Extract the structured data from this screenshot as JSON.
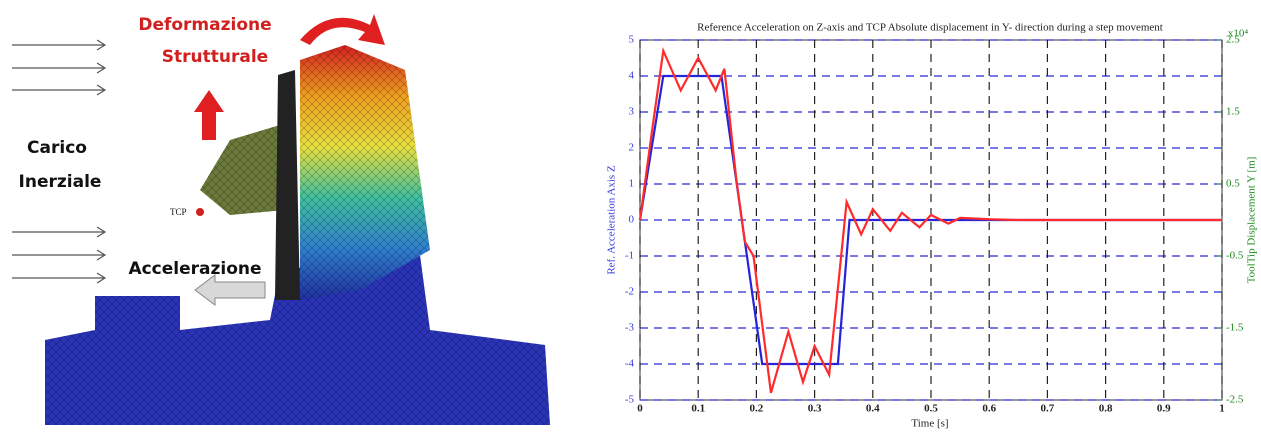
{
  "diagram": {
    "labels": {
      "deformation": [
        "Deformazione",
        "Strutturale"
      ],
      "load": [
        "Carico",
        "Inerziale"
      ],
      "acceleration": "Accelerazione",
      "tcp": "TCP"
    }
  },
  "chart_data": {
    "type": "line",
    "title": "Reference Acceleration on Z-axis and TCP Absolute displacement in Y- direction during a step movement",
    "x_label": "Time [s]",
    "y_label": "Ref. Acceleration Axis Z",
    "y2_label": "ToolTip Displacement Y [m]",
    "y2_multiplier": "x10⁴",
    "xlim": [
      0,
      1
    ],
    "xticks": [
      0,
      0.1,
      0.2,
      0.3,
      0.4,
      0.5,
      0.6,
      0.7,
      0.8,
      0.9,
      1
    ],
    "ylim": [
      -5,
      5
    ],
    "yticks": [
      -5,
      -4,
      -3,
      -2,
      -1,
      0,
      1,
      2,
      3,
      4,
      5
    ],
    "y2lim": [
      -2.5,
      2.5
    ],
    "y2ticks": [
      2.5,
      1.5,
      0.5,
      -0.5,
      -1.5,
      -2.5
    ],
    "grid": true,
    "grid_color": "#2b2bd6",
    "y_color": "#3b3be0",
    "y2_color": "#1e8a1e",
    "series": [
      {
        "color": "#2424d8",
        "x": [
          0,
          0.04,
          0.14,
          0.21,
          0.34,
          0.36,
          1
        ],
        "values": [
          0,
          4,
          4,
          -4,
          -4,
          0,
          0
        ]
      },
      {
        "color": "#ff2b2b",
        "axis": "y2",
        "x": [
          0,
          0.02,
          0.04,
          0.07,
          0.1,
          0.13,
          0.145,
          0.165,
          0.18,
          0.195,
          0.225,
          0.255,
          0.28,
          0.3,
          0.325,
          0.355,
          0.38,
          0.4,
          0.43,
          0.45,
          0.48,
          0.5,
          0.53,
          0.55,
          0.6,
          0.65,
          1
        ],
        "values": [
          0,
          1.2,
          2.35,
          1.8,
          2.25,
          1.8,
          2.1,
          0.6,
          -0.3,
          -0.5,
          -2.4,
          -1.55,
          -2.25,
          -1.75,
          -2.15,
          0.25,
          -0.2,
          0.15,
          -0.15,
          0.1,
          -0.1,
          0.07,
          -0.05,
          0.03,
          0.01,
          0,
          0
        ]
      }
    ]
  }
}
